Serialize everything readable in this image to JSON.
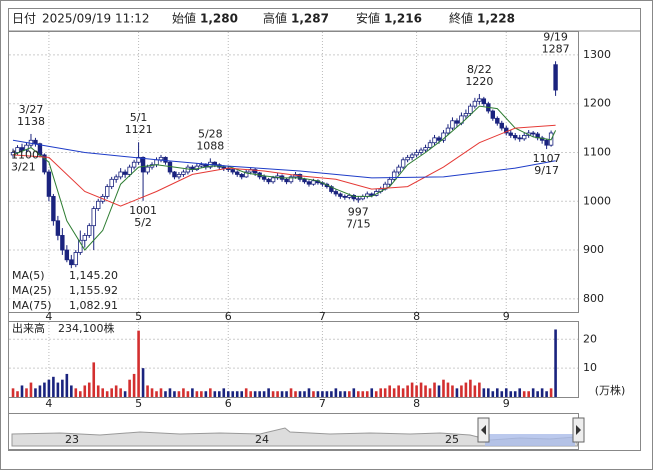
{
  "header": {
    "date_label": "日付",
    "date": "2025/09/19 11:12",
    "fields": [
      {
        "label": "始値",
        "value": "1,280"
      },
      {
        "label": "高値",
        "value": "1,287"
      },
      {
        "label": "安値",
        "value": "1,216"
      },
      {
        "label": "終値",
        "value": "1,228"
      }
    ]
  },
  "chart_data": [
    {
      "type": "candlestick",
      "up_color": "#ffffff",
      "down_color": "#1a237e",
      "edge_color": "#1a237e",
      "grid": true,
      "ylim": [
        773,
        1347
      ],
      "yticks": [
        800,
        900,
        1000,
        1100,
        1200,
        1300
      ],
      "xlim": [
        -0.9,
        126
      ],
      "xticks": [
        {
          "value": 8,
          "label": "4"
        },
        {
          "value": 28,
          "label": "5"
        },
        {
          "value": 48,
          "label": "6"
        },
        {
          "value": 69,
          "label": "7"
        },
        {
          "value": 90,
          "label": "8"
        },
        {
          "value": 110,
          "label": "9"
        }
      ],
      "ohlc": [
        [
          1095,
          1108,
          1090,
          1100
        ],
        [
          1100,
          1115,
          1095,
          1110
        ],
        [
          1110,
          1118,
          1100,
          1105
        ],
        [
          1105,
          1120,
          1100,
          1115
        ],
        [
          1115,
          1138,
          1110,
          1125
        ],
        [
          1125,
          1130,
          1112,
          1118
        ],
        [
          1118,
          1120,
          1090,
          1095
        ],
        [
          1095,
          1098,
          1055,
          1060
        ],
        [
          1060,
          1065,
          1000,
          1010
        ],
        [
          1010,
          1015,
          950,
          960
        ],
        [
          960,
          970,
          920,
          930
        ],
        [
          930,
          945,
          890,
          900
        ],
        [
          900,
          910,
          875,
          880
        ],
        [
          880,
          890,
          862,
          870
        ],
        [
          870,
          900,
          865,
          895
        ],
        [
          895,
          940,
          890,
          920
        ],
        [
          920,
          935,
          905,
          930
        ],
        [
          930,
          955,
          925,
          950
        ],
        [
          950,
          990,
          900,
          985
        ],
        [
          985,
          1005,
          980,
          1000
        ],
        [
          1000,
          1015,
          995,
          1010
        ],
        [
          1010,
          1035,
          1005,
          1030
        ],
        [
          1030,
          1050,
          1025,
          1045
        ],
        [
          1045,
          1055,
          1038,
          1050
        ],
        [
          1050,
          1068,
          1045,
          1060
        ],
        [
          1060,
          1065,
          1048,
          1055
        ],
        [
          1055,
          1075,
          1050,
          1070
        ],
        [
          1070,
          1085,
          1065,
          1080
        ],
        [
          1080,
          1121,
          1075,
          1090
        ],
        [
          1090,
          1092,
          1001,
          1060
        ],
        [
          1060,
          1075,
          1055,
          1070
        ],
        [
          1070,
          1080,
          1065,
          1075
        ],
        [
          1075,
          1090,
          1070,
          1085
        ],
        [
          1085,
          1095,
          1080,
          1090
        ],
        [
          1090,
          1092,
          1075,
          1080
        ],
        [
          1080,
          1082,
          1055,
          1060
        ],
        [
          1060,
          1062,
          1045,
          1050
        ],
        [
          1050,
          1060,
          1045,
          1055
        ],
        [
          1055,
          1065,
          1050,
          1060
        ],
        [
          1060,
          1075,
          1055,
          1070
        ],
        [
          1070,
          1074,
          1060,
          1065
        ],
        [
          1065,
          1078,
          1062,
          1072
        ],
        [
          1072,
          1080,
          1068,
          1075
        ],
        [
          1075,
          1078,
          1065,
          1070
        ],
        [
          1070,
          1088,
          1066,
          1080
        ],
        [
          1080,
          1082,
          1070,
          1075
        ],
        [
          1075,
          1078,
          1065,
          1070
        ],
        [
          1070,
          1074,
          1062,
          1068
        ],
        [
          1068,
          1072,
          1060,
          1065
        ],
        [
          1065,
          1068,
          1055,
          1060
        ],
        [
          1060,
          1063,
          1050,
          1055
        ],
        [
          1055,
          1058,
          1045,
          1050
        ],
        [
          1050,
          1065,
          1048,
          1060
        ],
        [
          1060,
          1070,
          1055,
          1065
        ],
        [
          1065,
          1068,
          1052,
          1058
        ],
        [
          1058,
          1060,
          1045,
          1050
        ],
        [
          1050,
          1055,
          1040,
          1045
        ],
        [
          1045,
          1048,
          1035,
          1040
        ],
        [
          1040,
          1052,
          1036,
          1048
        ],
        [
          1048,
          1058,
          1044,
          1052
        ],
        [
          1052,
          1055,
          1040,
          1045
        ],
        [
          1045,
          1048,
          1035,
          1040
        ],
        [
          1040,
          1054,
          1036,
          1050
        ],
        [
          1050,
          1060,
          1046,
          1055
        ],
        [
          1055,
          1057,
          1040,
          1045
        ],
        [
          1045,
          1048,
          1036,
          1040
        ],
        [
          1040,
          1043,
          1030,
          1035
        ],
        [
          1035,
          1046,
          1032,
          1042
        ],
        [
          1042,
          1045,
          1034,
          1038
        ],
        [
          1038,
          1041,
          1030,
          1035
        ],
        [
          1035,
          1038,
          1026,
          1030
        ],
        [
          1030,
          1033,
          1016,
          1020
        ],
        [
          1020,
          1024,
          1010,
          1015
        ],
        [
          1015,
          1018,
          1005,
          1010
        ],
        [
          1010,
          1014,
          1003,
          1008
        ],
        [
          1008,
          1016,
          1004,
          1012
        ],
        [
          1012,
          1015,
          1000,
          1005
        ],
        [
          1005,
          1010,
          997,
          1005
        ],
        [
          1005,
          1014,
          1002,
          1010
        ],
        [
          1010,
          1020,
          1006,
          1015
        ],
        [
          1015,
          1018,
          1008,
          1012
        ],
        [
          1012,
          1025,
          1010,
          1020
        ],
        [
          1020,
          1030,
          1016,
          1025
        ],
        [
          1025,
          1040,
          1022,
          1035
        ],
        [
          1035,
          1050,
          1030,
          1045
        ],
        [
          1045,
          1065,
          1042,
          1060
        ],
        [
          1060,
          1075,
          1055,
          1070
        ],
        [
          1070,
          1090,
          1066,
          1085
        ],
        [
          1085,
          1095,
          1080,
          1090
        ],
        [
          1090,
          1100,
          1084,
          1095
        ],
        [
          1095,
          1106,
          1090,
          1100
        ],
        [
          1100,
          1110,
          1095,
          1105
        ],
        [
          1105,
          1116,
          1100,
          1110
        ],
        [
          1110,
          1126,
          1106,
          1120
        ],
        [
          1120,
          1136,
          1115,
          1130
        ],
        [
          1130,
          1134,
          1118,
          1125
        ],
        [
          1125,
          1146,
          1120,
          1140
        ],
        [
          1140,
          1158,
          1135,
          1150
        ],
        [
          1150,
          1172,
          1146,
          1165
        ],
        [
          1165,
          1170,
          1152,
          1160
        ],
        [
          1160,
          1182,
          1156,
          1175
        ],
        [
          1175,
          1188,
          1168,
          1180
        ],
        [
          1180,
          1200,
          1175,
          1195
        ],
        [
          1195,
          1212,
          1190,
          1205
        ],
        [
          1205,
          1220,
          1198,
          1210
        ],
        [
          1210,
          1214,
          1195,
          1200
        ],
        [
          1200,
          1204,
          1180,
          1185
        ],
        [
          1185,
          1188,
          1165,
          1170
        ],
        [
          1170,
          1174,
          1155,
          1160
        ],
        [
          1160,
          1165,
          1145,
          1150
        ],
        [
          1150,
          1155,
          1135,
          1140
        ],
        [
          1140,
          1146,
          1130,
          1135
        ],
        [
          1135,
          1140,
          1125,
          1130
        ],
        [
          1130,
          1136,
          1122,
          1128
        ],
        [
          1128,
          1140,
          1124,
          1135
        ],
        [
          1135,
          1146,
          1130,
          1140
        ],
        [
          1140,
          1144,
          1132,
          1138
        ],
        [
          1138,
          1142,
          1125,
          1130
        ],
        [
          1130,
          1134,
          1118,
          1125
        ],
        [
          1125,
          1128,
          1107,
          1115
        ],
        [
          1115,
          1145,
          1112,
          1140
        ],
        [
          1280,
          1287,
          1216,
          1228
        ]
      ],
      "series": [
        {
          "name": "MA(5)",
          "color": "#2e7d32",
          "value_label": "1,145.20",
          "x": [
            0,
            4,
            8,
            12,
            16,
            20,
            24,
            28,
            32,
            36,
            40,
            44,
            48,
            52,
            56,
            60,
            64,
            68,
            72,
            76,
            80,
            84,
            88,
            92,
            96,
            100,
            104,
            108,
            112,
            116,
            120,
            121
          ],
          "values": [
            1095,
            1110,
            1080,
            960,
            900,
            940,
            1035,
            1070,
            1075,
            1070,
            1065,
            1072,
            1072,
            1058,
            1052,
            1048,
            1048,
            1042,
            1025,
            1010,
            1010,
            1030,
            1075,
            1100,
            1128,
            1160,
            1195,
            1190,
            1150,
            1132,
            1126,
            1145.2
          ]
        },
        {
          "name": "MA(25)",
          "color": "#e53935",
          "value_label": "1,155.92",
          "x": [
            0,
            8,
            16,
            24,
            32,
            40,
            48,
            56,
            64,
            72,
            80,
            88,
            96,
            104,
            112,
            121
          ],
          "values": [
            1095,
            1090,
            1020,
            990,
            1020,
            1055,
            1068,
            1062,
            1052,
            1045,
            1025,
            1030,
            1070,
            1120,
            1150,
            1155.92
          ]
        },
        {
          "name": "MA(75)",
          "color": "#1e3cc8",
          "value_label": "1,082.91",
          "x": [
            0,
            16,
            32,
            48,
            64,
            80,
            96,
            112,
            121
          ],
          "values": [
            1125,
            1100,
            1085,
            1072,
            1062,
            1048,
            1050,
            1068,
            1082.91
          ]
        }
      ],
      "annotations": [
        {
          "date": "3/27",
          "value": 1138,
          "index": 4,
          "pos": "above"
        },
        {
          "date": "3/21",
          "value": 1100,
          "index": 0,
          "pos": "left"
        },
        {
          "date": "5/1",
          "value": 1121,
          "index": 28,
          "pos": "above"
        },
        {
          "date": "5/2",
          "value": 1001,
          "index": 29,
          "pos": "below"
        },
        {
          "date": "5/28",
          "value": 1088,
          "index": 44,
          "pos": "above"
        },
        {
          "date": "7/15",
          "value": 997,
          "index": 77,
          "pos": "below"
        },
        {
          "date": "8/22",
          "value": 1220,
          "index": 104,
          "pos": "above"
        },
        {
          "date": "9/19",
          "value": 1287,
          "index": 121,
          "pos": "above"
        },
        {
          "date": "9/17",
          "value": 1107,
          "index": 119,
          "pos": "below"
        }
      ]
    },
    {
      "type": "bar",
      "title": "出来高",
      "subtitle": "234,100株",
      "unit": "(万株)",
      "ylim": [
        0,
        26
      ],
      "yticks": [
        10,
        20
      ],
      "values": [
        3,
        2,
        4,
        3,
        5,
        3,
        4,
        5,
        6,
        7,
        5,
        6,
        8,
        4,
        3,
        2,
        4,
        5,
        12,
        4,
        3,
        2,
        3,
        4,
        3,
        2,
        6,
        8,
        23,
        10,
        4,
        3,
        2,
        3,
        2,
        3,
        2,
        2,
        3,
        2,
        3,
        2,
        2,
        2,
        3,
        2,
        2,
        3,
        2,
        2,
        2,
        2,
        3,
        2,
        2,
        2,
        2,
        3,
        2,
        2,
        2,
        2,
        3,
        2,
        2,
        2,
        3,
        2,
        2,
        2,
        2,
        2,
        3,
        2,
        2,
        2,
        3,
        2,
        2,
        2,
        3,
        2,
        3,
        3,
        4,
        3,
        4,
        3,
        4,
        5,
        4,
        5,
        4,
        3,
        5,
        4,
        6,
        5,
        4,
        3,
        4,
        5,
        6,
        4,
        5,
        3,
        3,
        2,
        3,
        2,
        3,
        2,
        2,
        3,
        2,
        2,
        3,
        2,
        3,
        2,
        3,
        23.41
      ]
    }
  ],
  "navigator": {
    "labels": [
      "23",
      "24",
      "25"
    ]
  }
}
